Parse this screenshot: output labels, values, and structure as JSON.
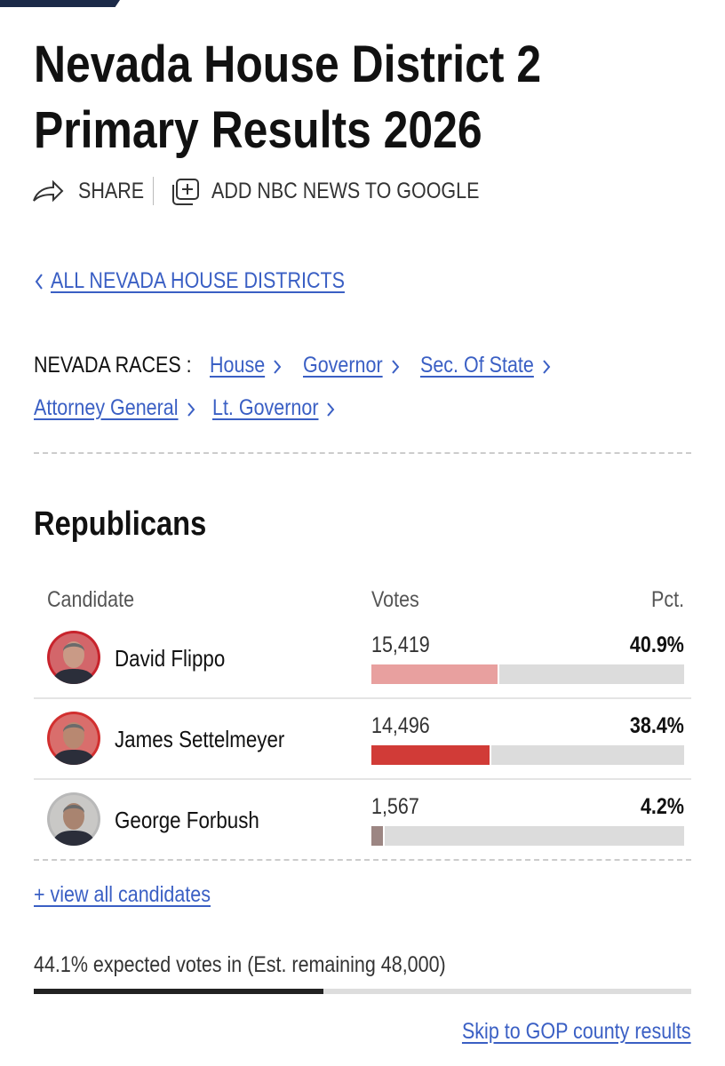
{
  "header": {
    "title": "Nevada House District 2 Primary Results 2026",
    "share": "SHARE",
    "add_to_google": "ADD NBC NEWS TO GOOGLE"
  },
  "back_link": "ALL NEVADA HOUSE DISTRICTS",
  "races": {
    "label": "NEVADA RACES :",
    "links": [
      "House",
      "Governor",
      "Sec. Of State",
      "Attorney General",
      "Lt. Governor"
    ]
  },
  "section": "Republicans",
  "table": {
    "headers": [
      "Candidate",
      "Votes",
      "Pct."
    ],
    "rows": [
      {
        "name": "David Flippo",
        "votes": "15,419",
        "pct": {
          "value": 40.9,
          "label": "40.9%"
        },
        "color": "#e8a09f"
      },
      {
        "name": "James Settelmeyer",
        "votes": "14,496",
        "pct": {
          "value": 38.4,
          "label": "38.4%"
        },
        "color": "#d13b37"
      },
      {
        "name": "George Forbush",
        "votes": "1,567",
        "pct": {
          "value": 4.2,
          "label": "4.2%"
        },
        "color": "#9c8683"
      }
    ]
  },
  "view_all": "+ view all candidates",
  "expected": {
    "text": "44.1% expected votes in (Est. remaining 48,000)",
    "pct": 44.1
  },
  "skip_link": "Skip to GOP county results"
}
